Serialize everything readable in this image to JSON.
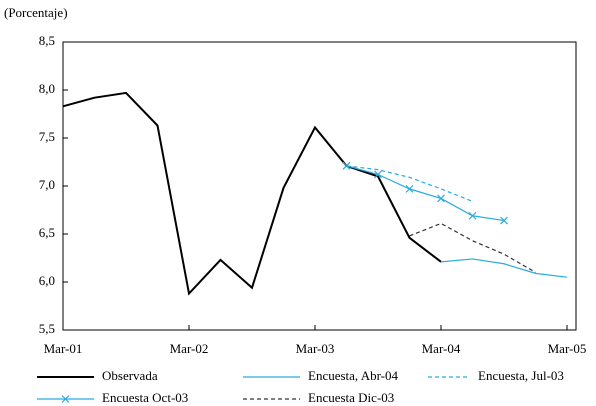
{
  "chart_data": {
    "type": "line",
    "y_label": "(Porcentaje)",
    "categories": [
      "Mar-01",
      null,
      null,
      null,
      "Mar-02",
      null,
      null,
      null,
      "Mar-03",
      null,
      null,
      null,
      "Mar-04",
      null,
      null,
      null,
      "Mar-05"
    ],
    "ylim": [
      5.5,
      8.5
    ],
    "yticks": [
      {
        "value": 5.5,
        "label": "5,5"
      },
      {
        "value": 6.0,
        "label": "6,0"
      },
      {
        "value": 6.5,
        "label": "6,5"
      },
      {
        "value": 7.0,
        "label": "7,0"
      },
      {
        "value": 7.5,
        "label": "7,5"
      },
      {
        "value": 8.0,
        "label": "8,0"
      },
      {
        "value": 8.5,
        "label": "8,5"
      }
    ],
    "series": [
      {
        "name": "Observada",
        "color": "#000000",
        "style": "solid",
        "marker": "none",
        "values": [
          7.83,
          7.92,
          7.97,
          7.63,
          5.88,
          6.23,
          5.94,
          6.98,
          7.61,
          7.21,
          7.1,
          6.46,
          6.21,
          null,
          null,
          null,
          null
        ]
      },
      {
        "name": "Encuesta, Abr-04",
        "color": "#29abe2",
        "style": "solid",
        "marker": "none",
        "values": [
          null,
          null,
          null,
          null,
          null,
          null,
          null,
          null,
          null,
          null,
          null,
          null,
          6.21,
          6.24,
          6.19,
          6.09,
          6.05
        ]
      },
      {
        "name": "Encuesta, Jul-03",
        "color": "#29abe2",
        "style": "dashed",
        "marker": "none",
        "values": [
          null,
          null,
          null,
          null,
          null,
          null,
          null,
          null,
          null,
          7.21,
          7.17,
          7.09,
          6.97,
          6.84,
          null,
          null,
          null
        ]
      },
      {
        "name": "Encuesta Oct-03",
        "color": "#29abe2",
        "style": "solid",
        "marker": "x",
        "values": [
          null,
          null,
          null,
          null,
          null,
          null,
          null,
          null,
          null,
          7.21,
          7.12,
          6.97,
          6.87,
          6.69,
          6.64,
          null,
          null
        ]
      },
      {
        "name": "Encuesta Dic-03",
        "color": "#333333",
        "style": "dashed",
        "marker": "none",
        "values": [
          null,
          null,
          null,
          null,
          null,
          null,
          null,
          null,
          null,
          null,
          null,
          6.48,
          6.61,
          6.43,
          6.29,
          6.1,
          null
        ]
      }
    ]
  }
}
